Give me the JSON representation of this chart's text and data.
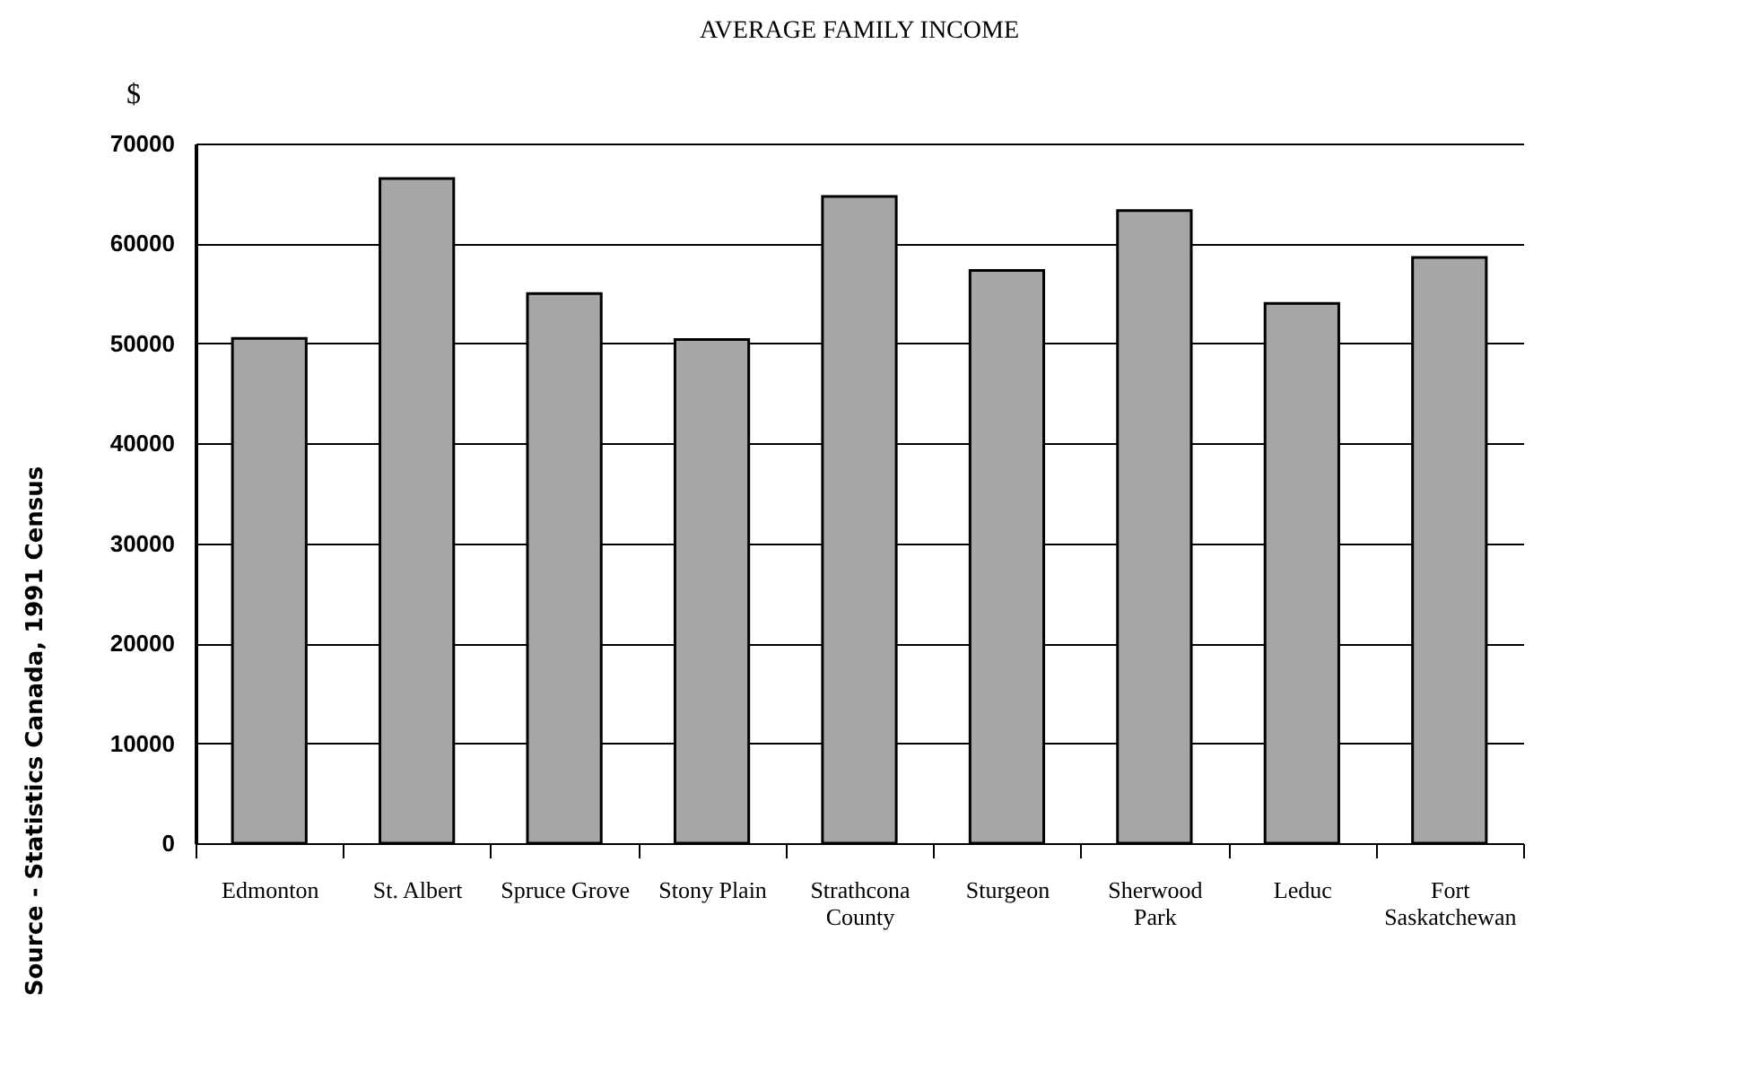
{
  "chart_data": {
    "type": "bar",
    "title": "AVERAGE FAMILY INCOME",
    "ylabel": "$",
    "categories": [
      "Edmonton",
      "St. Albert",
      "Spruce Grove",
      "Stony Plain",
      "Strathcona County",
      "Sturgeon",
      "Sherwood Park",
      "Leduc",
      "Fort Saskatchewan"
    ],
    "values": [
      50500,
      66500,
      55000,
      50400,
      64700,
      57300,
      63300,
      54000,
      58600
    ],
    "color": "#a6a6a6",
    "ylim": [
      0,
      70000
    ],
    "yticks": [
      0,
      10000,
      20000,
      30000,
      40000,
      50000,
      60000,
      70000
    ],
    "grid": "y",
    "annotations": [
      "Source - Statistics Canada, 1991 Census"
    ]
  }
}
